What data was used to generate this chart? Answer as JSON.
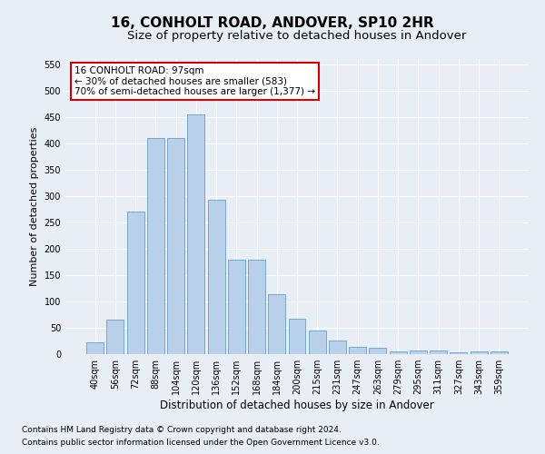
{
  "title": "16, CONHOLT ROAD, ANDOVER, SP10 2HR",
  "subtitle": "Size of property relative to detached houses in Andover",
  "xlabel": "Distribution of detached houses by size in Andover",
  "ylabel": "Number of detached properties",
  "footnote1": "Contains HM Land Registry data © Crown copyright and database right 2024.",
  "footnote2": "Contains public sector information licensed under the Open Government Licence v3.0.",
  "categories": [
    "40sqm",
    "56sqm",
    "72sqm",
    "88sqm",
    "104sqm",
    "120sqm",
    "136sqm",
    "152sqm",
    "168sqm",
    "184sqm",
    "200sqm",
    "215sqm",
    "231sqm",
    "247sqm",
    "263sqm",
    "279sqm",
    "295sqm",
    "311sqm",
    "327sqm",
    "343sqm",
    "359sqm"
  ],
  "values": [
    22,
    65,
    270,
    410,
    410,
    455,
    293,
    179,
    179,
    113,
    68,
    44,
    25,
    13,
    12,
    6,
    7,
    7,
    4,
    6,
    5
  ],
  "bar_color": "#b8d0ea",
  "bar_edge_color": "#6a9ec5",
  "background_color": "#e8eef5",
  "annotation_text": "16 CONHOLT ROAD: 97sqm\n← 30% of detached houses are smaller (583)\n70% of semi-detached houses are larger (1,377) →",
  "annotation_box_color": "#ffffff",
  "annotation_box_edge": "#cc0000",
  "ylim": [
    0,
    560
  ],
  "yticks": [
    0,
    50,
    100,
    150,
    200,
    250,
    300,
    350,
    400,
    450,
    500,
    550
  ],
  "title_fontsize": 11,
  "subtitle_fontsize": 9.5,
  "xlabel_fontsize": 8.5,
  "ylabel_fontsize": 8,
  "tick_fontsize": 7,
  "annotation_fontsize": 7.5,
  "footnote_fontsize": 6.5
}
